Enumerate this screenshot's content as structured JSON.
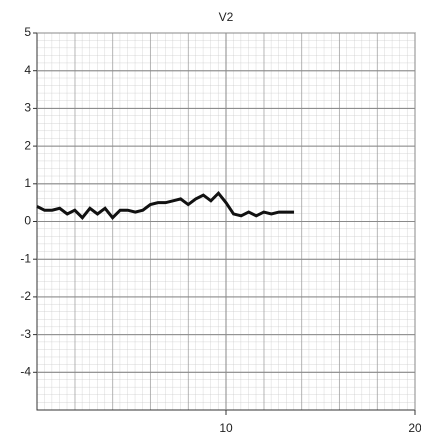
{
  "chart_data": {
    "type": "line",
    "title": "V2",
    "x": [
      0,
      0.4,
      0.8,
      1.2,
      1.6,
      2.0,
      2.4,
      2.8,
      3.2,
      3.6,
      4.0,
      4.4,
      4.8,
      5.2,
      5.6,
      6.0,
      6.4,
      6.8,
      7.2,
      7.6,
      8.0,
      8.4,
      8.8,
      9.2,
      9.6,
      10.0,
      10.4,
      10.8,
      11.2,
      11.6,
      12.0,
      12.4,
      12.8,
      13.2,
      13.6
    ],
    "values": [
      0.4,
      0.3,
      0.3,
      0.35,
      0.2,
      0.3,
      0.1,
      0.35,
      0.2,
      0.35,
      0.1,
      0.3,
      0.3,
      0.25,
      0.3,
      0.45,
      0.5,
      0.5,
      0.55,
      0.6,
      0.45,
      0.6,
      0.7,
      0.55,
      0.75,
      0.5,
      0.2,
      0.15,
      0.25,
      0.15,
      0.25,
      0.2,
      0.25,
      0.25,
      0.25
    ],
    "color": "#111111",
    "xlim": [
      0,
      20
    ],
    "xticks": [
      10,
      20
    ],
    "ylim": [
      -5,
      5
    ],
    "yticks": [
      5,
      4,
      3,
      2,
      1,
      0,
      -1,
      -2,
      -3,
      -4
    ],
    "grid": true
  }
}
